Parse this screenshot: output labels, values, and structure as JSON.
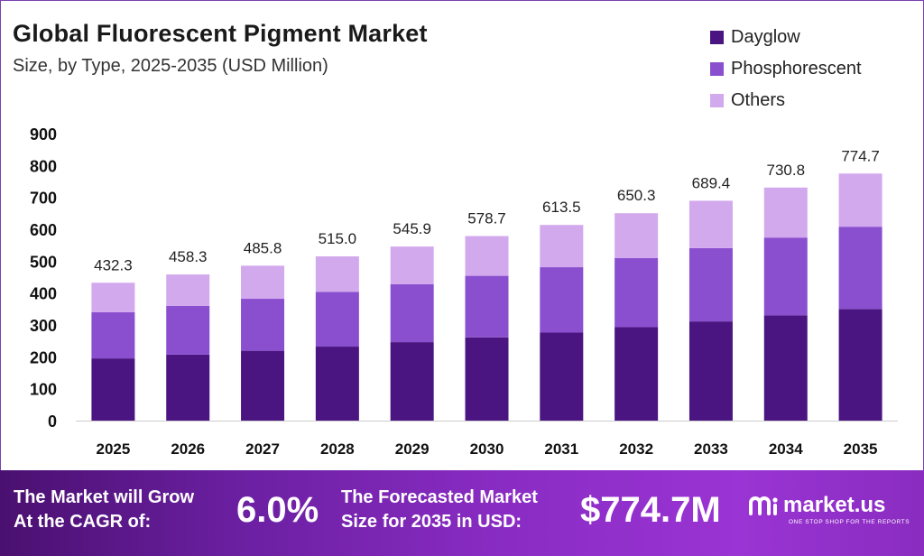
{
  "colors": {
    "dayglow": "#4a1580",
    "phosphorescent": "#8a4fcf",
    "others": "#d3a9ee",
    "banner": "#7a26b8"
  },
  "chart_data": {
    "type": "bar",
    "stacked": true,
    "title": "Global Fluorescent Pigment Market",
    "subtitle": "Size, by Type, 2025-2035 (USD Million)",
    "categories": [
      "2025",
      "2026",
      "2027",
      "2028",
      "2029",
      "2030",
      "2031",
      "2032",
      "2033",
      "2034",
      "2035"
    ],
    "series": [
      {
        "name": "Dayglow",
        "values": [
          195,
          207,
          219,
          232,
          246,
          261,
          276,
          293,
          311,
          330,
          350
        ]
      },
      {
        "name": "Phosphorescent",
        "values": [
          145,
          153,
          163,
          172,
          182,
          193,
          205,
          217,
          230,
          244,
          258
        ]
      },
      {
        "name": "Others",
        "values": [
          92.3,
          98.3,
          103.8,
          111.0,
          117.9,
          124.7,
          132.5,
          140.3,
          148.4,
          156.8,
          166.7
        ]
      }
    ],
    "totals": [
      "432.3",
      "458.3",
      "485.8",
      "515.0",
      "545.9",
      "578.7",
      "613.5",
      "650.3",
      "689.4",
      "730.8",
      "774.7"
    ],
    "yticks": [
      0,
      100,
      200,
      300,
      400,
      500,
      600,
      700,
      800,
      900
    ],
    "ylim": [
      0,
      900
    ],
    "grid": false,
    "legend_position": "top-right"
  },
  "banner": {
    "grow_line1": "The Market will Grow",
    "grow_line2": "At the CAGR of:",
    "cagr_value": "6.0%",
    "forecast_line1": "The Forecasted Market",
    "forecast_line2": "Size for 2035 in USD:",
    "forecast_value": "$774.7M",
    "brand_name": "market.us",
    "brand_tagline": "ONE STOP SHOP FOR THE REPORTS",
    "brand_icon": "market-us-logo-icon"
  }
}
